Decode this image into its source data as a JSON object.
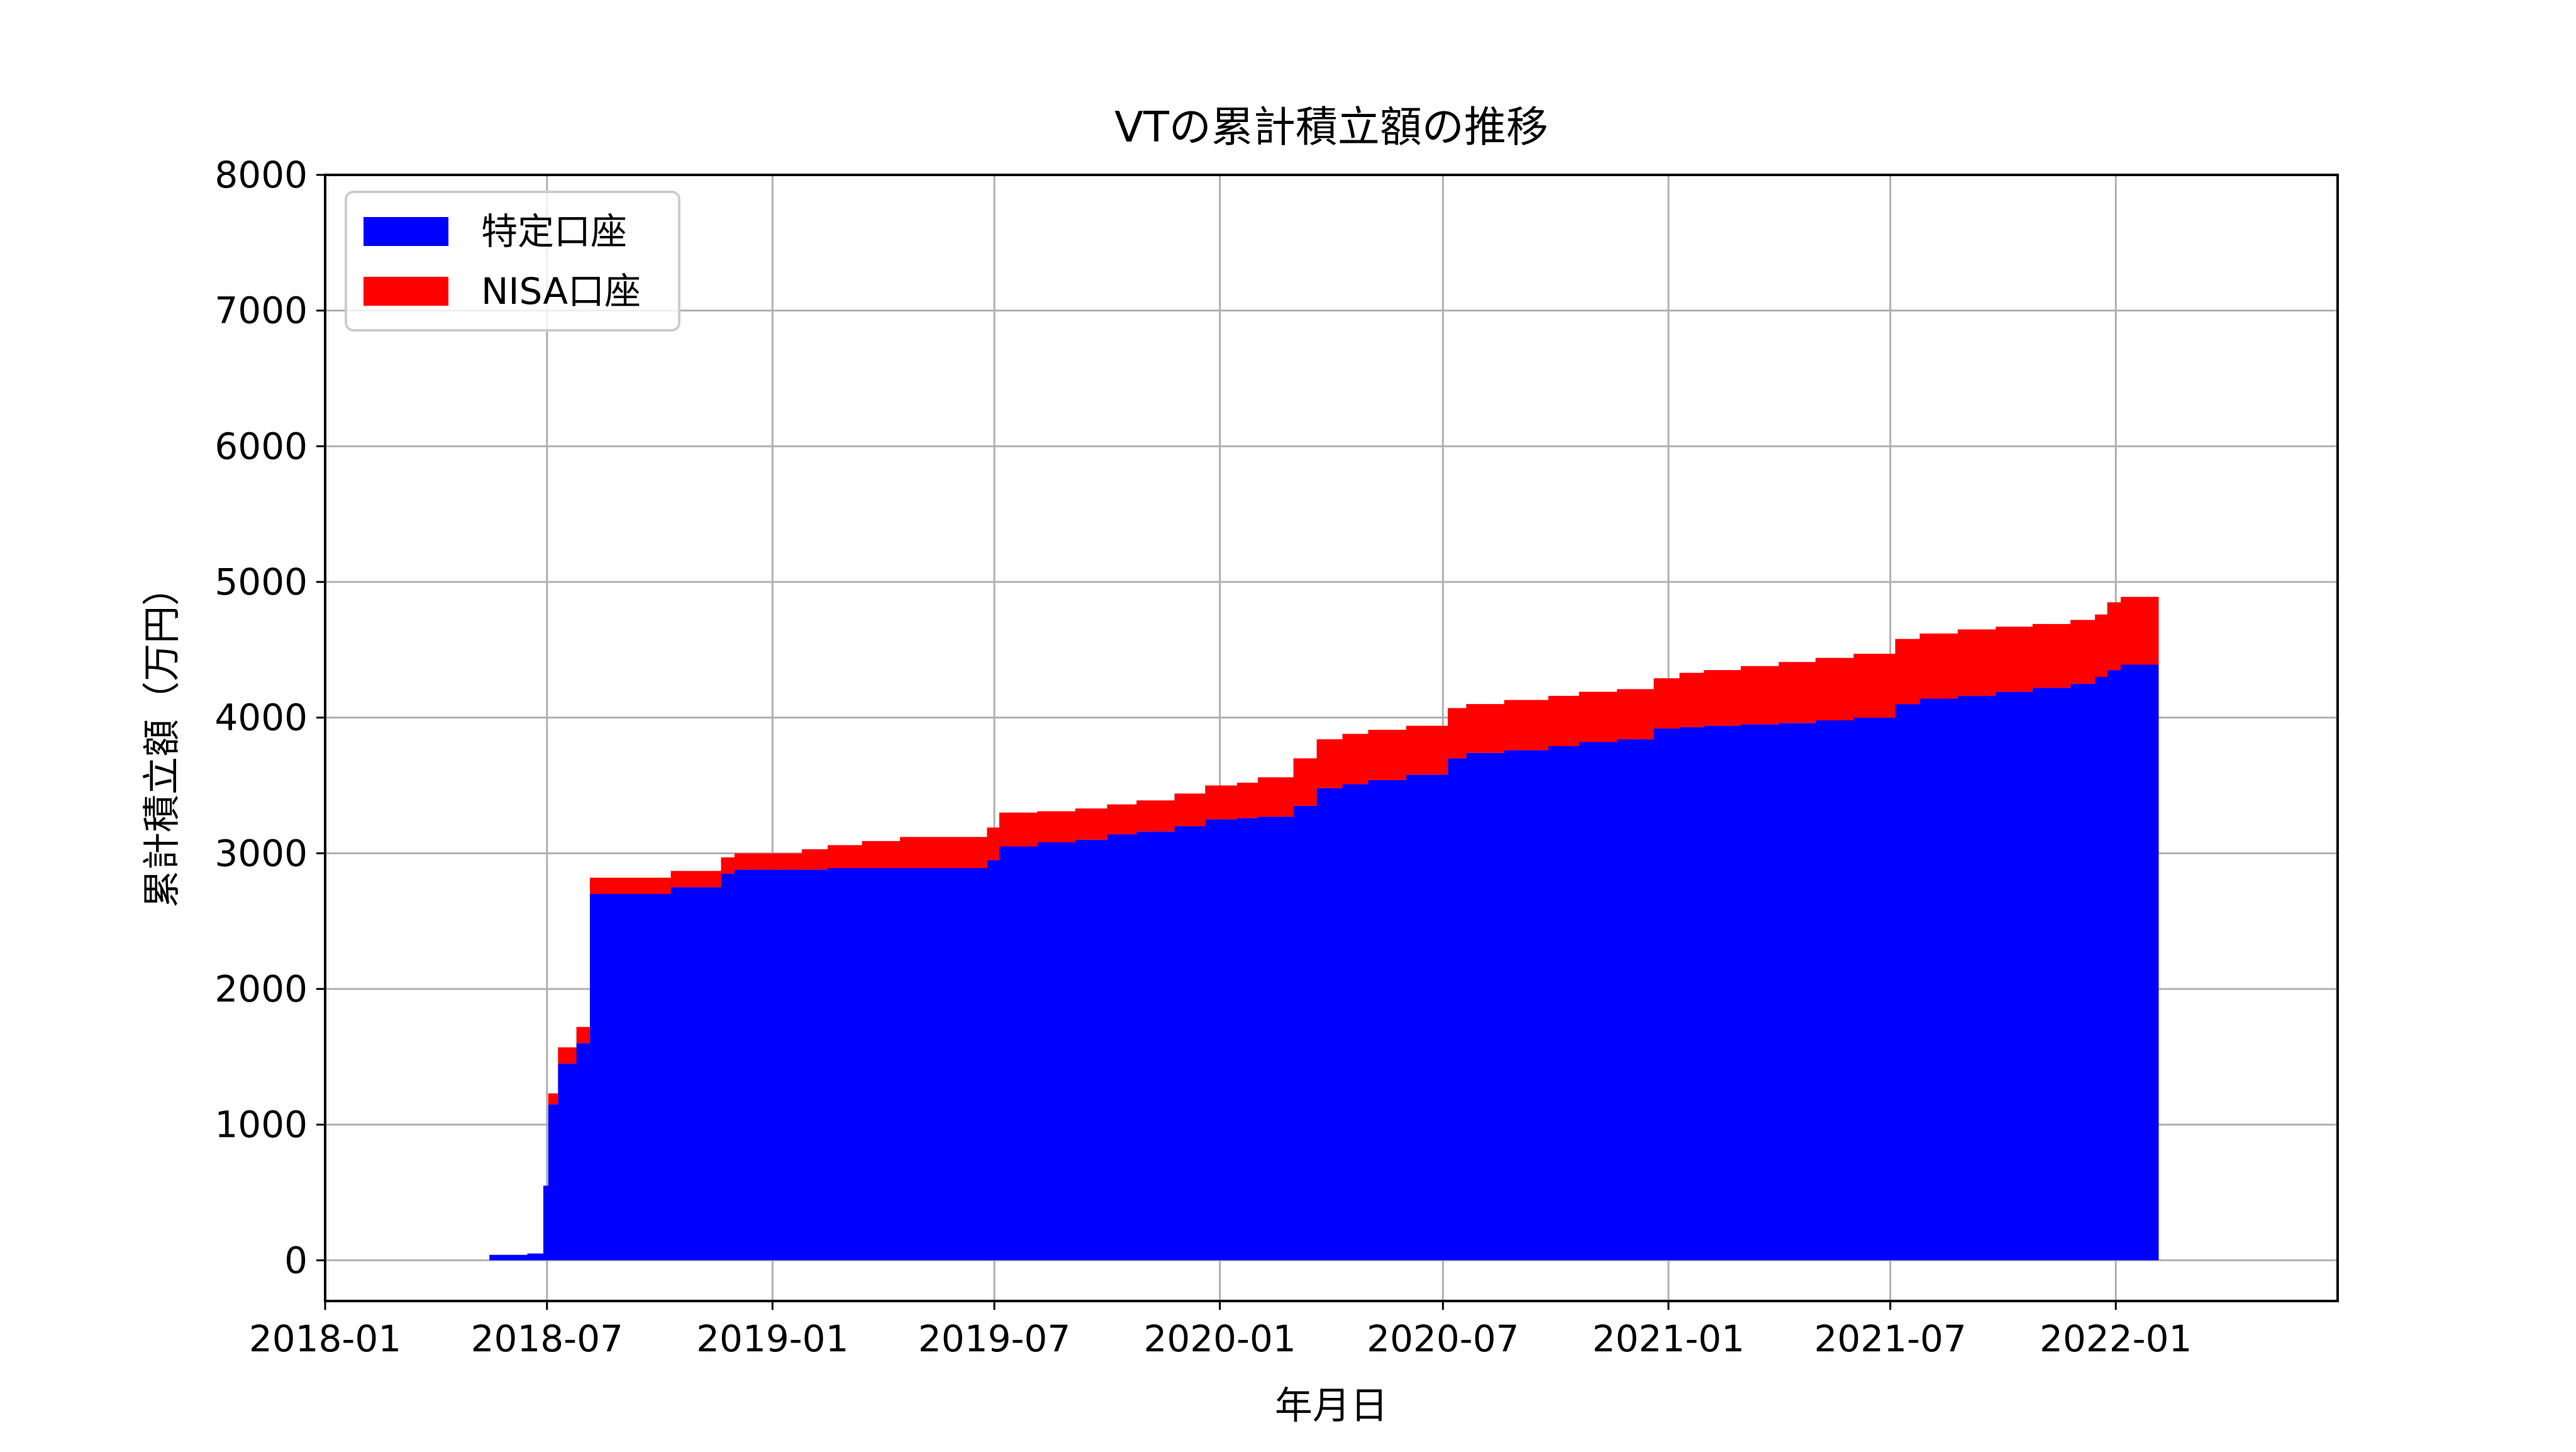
{
  "chart_data": {
    "type": "area",
    "title": "VTの累計積立額の推移",
    "xlabel": "年月日",
    "ylabel": "累計積立額（万円）",
    "xlim": [
      "2018-01-01",
      "2022-07-01"
    ],
    "ylim": [
      -300,
      8000
    ],
    "x_ticks": [
      "2018-01",
      "2018-07",
      "2019-01",
      "2019-07",
      "2020-01",
      "2020-07",
      "2021-01",
      "2021-07",
      "2022-01"
    ],
    "y_ticks": [
      0,
      1000,
      2000,
      3000,
      4000,
      5000,
      6000,
      7000,
      8000
    ],
    "grid": true,
    "stacked": true,
    "step": true,
    "legend": {
      "position": "top-left",
      "items": [
        "特定口座",
        "NISA口座"
      ]
    },
    "x": [
      "2018-05-15",
      "2018-06-15",
      "2018-06-28",
      "2018-07-02",
      "2018-07-10",
      "2018-07-25",
      "2018-08-05",
      "2018-08-10",
      "2018-10-10",
      "2018-11-20",
      "2018-12-01",
      "2019-01-05",
      "2019-01-25",
      "2019-02-15",
      "2019-03-15",
      "2019-04-15",
      "2019-06-25",
      "2019-07-05",
      "2019-08-05",
      "2019-09-05",
      "2019-10-01",
      "2019-10-25",
      "2019-11-25",
      "2019-12-20",
      "2020-01-15",
      "2020-02-01",
      "2020-03-01",
      "2020-03-20",
      "2020-04-10",
      "2020-05-01",
      "2020-06-01",
      "2020-07-05",
      "2020-07-20",
      "2020-08-20",
      "2020-09-25",
      "2020-10-20",
      "2020-11-20",
      "2020-12-20",
      "2021-01-10",
      "2021-01-30",
      "2021-03-01",
      "2021-04-01",
      "2021-05-01",
      "2021-06-01",
      "2021-07-05",
      "2021-07-25",
      "2021-08-25",
      "2021-09-25",
      "2021-10-25",
      "2021-11-25",
      "2021-12-15",
      "2021-12-25",
      "2022-01-05",
      "2022-02-05"
    ],
    "series": [
      {
        "name": "特定口座",
        "color": "#0000ff",
        "values": [
          40,
          50,
          550,
          1150,
          1450,
          1600,
          2700,
          2700,
          2750,
          2850,
          2880,
          2880,
          2880,
          2890,
          2890,
          2890,
          2950,
          3050,
          3080,
          3100,
          3140,
          3160,
          3200,
          3250,
          3260,
          3270,
          3350,
          3480,
          3510,
          3540,
          3580,
          3700,
          3740,
          3760,
          3790,
          3820,
          3840,
          3920,
          3930,
          3940,
          3950,
          3960,
          3980,
          4000,
          4100,
          4140,
          4160,
          4190,
          4220,
          4250,
          4300,
          4350,
          4390,
          4390
        ]
      },
      {
        "name": "NISA口座",
        "color": "#ff0000",
        "values": [
          0,
          0,
          0,
          80,
          120,
          120,
          120,
          120,
          120,
          120,
          120,
          120,
          150,
          170,
          200,
          230,
          240,
          250,
          230,
          230,
          220,
          230,
          240,
          250,
          260,
          290,
          350,
          360,
          370,
          370,
          360,
          370,
          360,
          370,
          370,
          370,
          370,
          370,
          400,
          410,
          430,
          450,
          460,
          470,
          480,
          480,
          490,
          480,
          470,
          470,
          460,
          500,
          500,
          500
        ]
      }
    ]
  }
}
